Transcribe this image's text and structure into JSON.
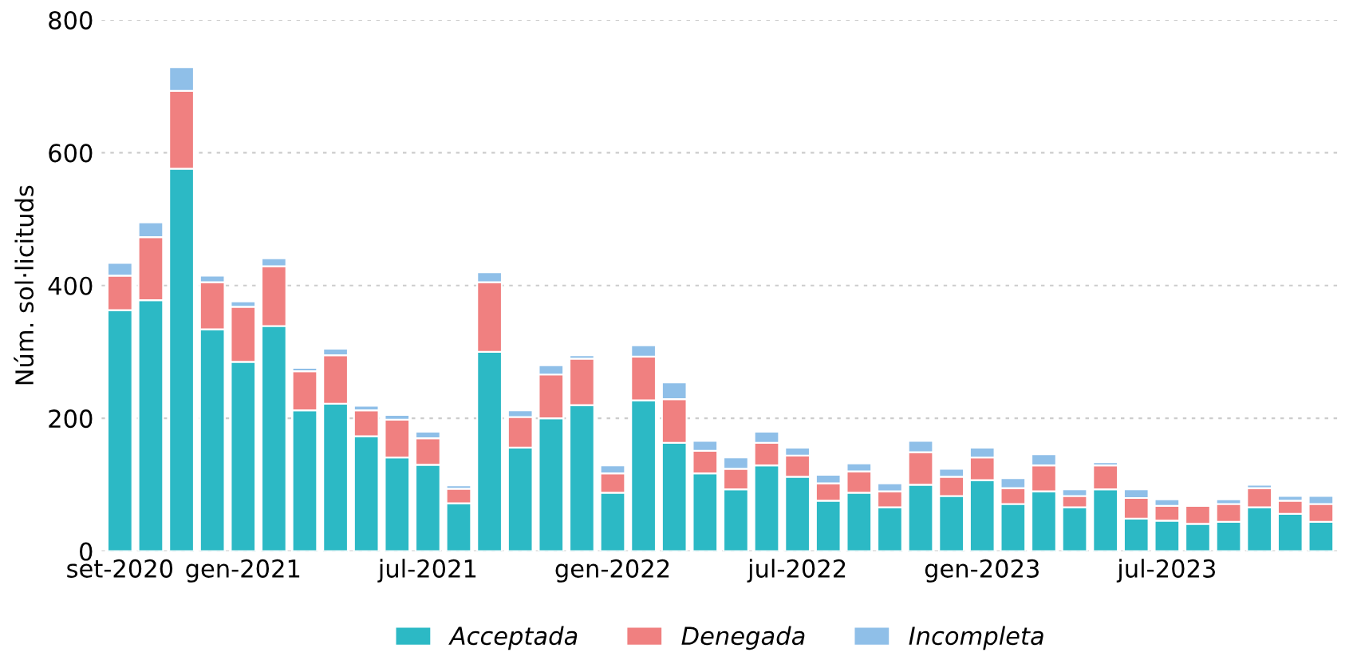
{
  "chart_data": {
    "type": "bar",
    "stacked": true,
    "ylabel": "Núm. sol·licituds",
    "categories": [
      "set-2020",
      null,
      null,
      null,
      "gen-2021",
      null,
      null,
      null,
      null,
      null,
      "jul-2021",
      null,
      null,
      null,
      null,
      null,
      "gen-2022",
      null,
      null,
      null,
      null,
      null,
      "jul-2022",
      null,
      null,
      null,
      null,
      null,
      "gen-2023",
      null,
      null,
      null,
      null,
      null,
      "jul-2023",
      null,
      null,
      null,
      null,
      null
    ],
    "series": [
      {
        "name": "Acceptada",
        "color": "#2cb9c5",
        "values": [
          363,
          378,
          576,
          334,
          285,
          339,
          212,
          222,
          173,
          141,
          130,
          72,
          300,
          156,
          200,
          220,
          88,
          227,
          163,
          117,
          93,
          129,
          112,
          76,
          88,
          66,
          100,
          83,
          107,
          71,
          90,
          66,
          93,
          49,
          46,
          41,
          44,
          66,
          56,
          44
        ]
      },
      {
        "name": "Denegada",
        "color": "#f08080",
        "values": [
          52,
          95,
          117,
          71,
          83,
          90,
          59,
          73,
          39,
          57,
          40,
          22,
          105,
          46,
          66,
          70,
          29,
          66,
          66,
          34,
          31,
          34,
          32,
          26,
          32,
          24,
          49,
          29,
          34,
          24,
          39,
          17,
          36,
          31,
          22,
          27,
          27,
          29,
          20,
          27
        ]
      },
      {
        "name": "Incompleta",
        "color": "#8fbfe8",
        "values": [
          19,
          22,
          36,
          10,
          8,
          12,
          5,
          10,
          7,
          7,
          10,
          5,
          15,
          10,
          14,
          5,
          12,
          17,
          25,
          15,
          17,
          17,
          12,
          13,
          12,
          12,
          17,
          12,
          15,
          15,
          17,
          10,
          5,
          13,
          10,
          null,
          7,
          5,
          7,
          12
        ]
      }
    ],
    "ylim": [
      0,
      800
    ],
    "yticks": [
      0,
      200,
      400,
      600,
      800
    ],
    "grid": "y",
    "legend": "bottom"
  }
}
